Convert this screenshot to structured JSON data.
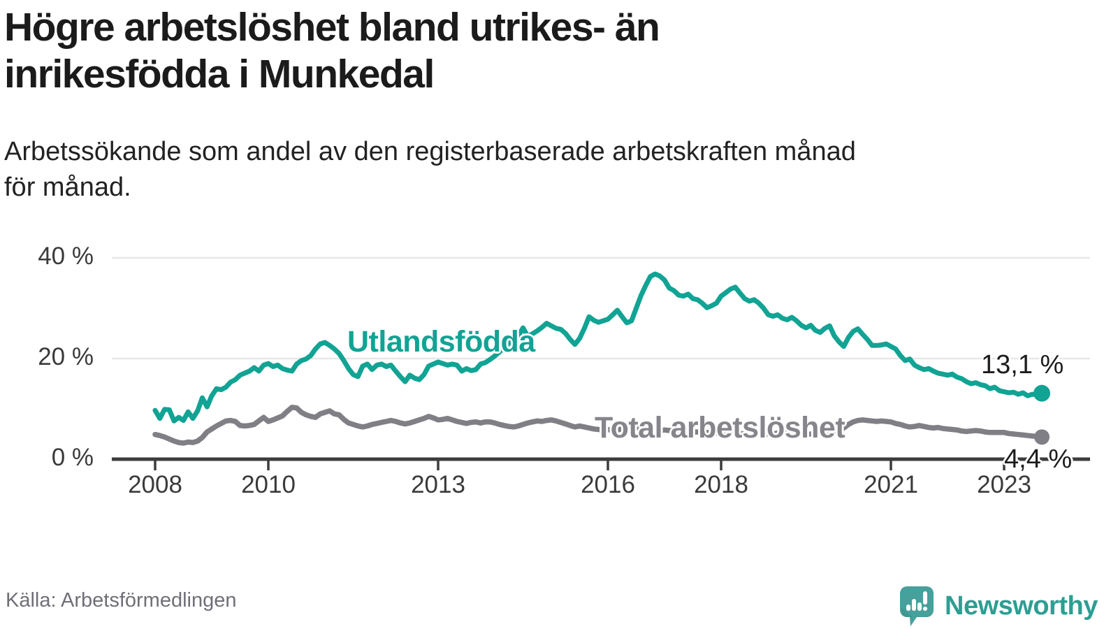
{
  "header": {
    "title_lines": [
      "Högre arbetslöshet bland utrikes- än",
      "inrikesfödda i Munkedal"
    ],
    "subtitle_lines": [
      "Arbetssökande som andel av den registerbaserade arbetskraften månad",
      "för månad."
    ]
  },
  "chart_data": {
    "type": "line",
    "title": "Högre arbetslöshet bland utrikes- än inrikesfödda i Munkedal",
    "subtitle": "Arbetssökande som andel av den registerbaserade arbetskraften månad för månad.",
    "unit": "%",
    "frequency": "monthly",
    "x_start": "2008-01",
    "x_end": "2023-09",
    "ylim": [
      0,
      42
    ],
    "grid": "horizontal",
    "yticks": [
      {
        "value": 40,
        "label": "40 %",
        "gridline": true
      },
      {
        "value": 20,
        "label": "20 %",
        "gridline": true
      },
      {
        "value": 0,
        "label": "0 %",
        "gridline": false
      }
    ],
    "xticks": [
      {
        "label": "2008",
        "month_index": 0
      },
      {
        "label": "2010",
        "month_index": 24
      },
      {
        "label": "2013",
        "month_index": 60
      },
      {
        "label": "2016",
        "month_index": 96
      },
      {
        "label": "2018",
        "month_index": 120
      },
      {
        "label": "2021",
        "month_index": 156
      },
      {
        "label": "2023",
        "month_index": 180
      }
    ],
    "series": [
      {
        "name": "Utlandsfödda",
        "color": "#11a394",
        "end_value": 13.1,
        "end_label": "13,1 %",
        "values": [
          9.7,
          8.1,
          9.9,
          9.8,
          7.6,
          8.3,
          7.7,
          9.4,
          8.1,
          9.6,
          12.2,
          10.4,
          12.6,
          14.0,
          13.8,
          14.3,
          15.3,
          15.8,
          16.7,
          17.1,
          17.5,
          18.2,
          17.5,
          18.7,
          19.0,
          18.4,
          18.7,
          18.0,
          17.7,
          17.5,
          18.9,
          19.6,
          19.9,
          20.6,
          21.9,
          22.9,
          23.2,
          22.6,
          21.9,
          21.0,
          19.6,
          18.0,
          16.8,
          16.4,
          18.5,
          18.9,
          17.8,
          18.7,
          18.9,
          18.4,
          18.7,
          17.5,
          16.4,
          15.4,
          16.7,
          16.1,
          15.8,
          16.8,
          18.5,
          18.9,
          19.3,
          19.0,
          18.7,
          18.9,
          18.7,
          17.5,
          18.0,
          17.6,
          17.8,
          18.9,
          19.2,
          19.8,
          20.5,
          21.3,
          22.2,
          23.0,
          24.0,
          24.5,
          26.1,
          24.4,
          24.9,
          25.5,
          26.2,
          27.0,
          26.5,
          26.0,
          25.8,
          25.0,
          23.8,
          22.8,
          24.0,
          26.0,
          28.3,
          27.6,
          27.2,
          27.5,
          27.8,
          28.7,
          29.6,
          28.3,
          27.1,
          27.5,
          30.0,
          32.5,
          34.5,
          36.3,
          36.8,
          36.4,
          35.6,
          34.0,
          33.5,
          32.6,
          32.4,
          32.8,
          31.9,
          31.7,
          31.0,
          30.1,
          30.5,
          31.0,
          32.4,
          33.1,
          33.8,
          34.2,
          33.0,
          31.9,
          31.4,
          31.7,
          31.0,
          30.0,
          28.7,
          28.4,
          28.7,
          28.0,
          27.7,
          28.2,
          27.5,
          26.6,
          26.1,
          26.6,
          25.6,
          25.2,
          26.0,
          26.5,
          24.5,
          23.3,
          22.4,
          24.2,
          25.4,
          25.9,
          24.8,
          23.8,
          22.6,
          22.6,
          22.7,
          22.9,
          22.4,
          21.9,
          20.6,
          19.6,
          19.9,
          18.7,
          18.2,
          17.8,
          18.0,
          17.5,
          17.1,
          16.9,
          16.7,
          16.9,
          16.3,
          16.0,
          15.4,
          15.0,
          15.2,
          14.8,
          14.6,
          14.0,
          14.3,
          13.6,
          13.4,
          13.2,
          13.3,
          12.9,
          13.2,
          12.6,
          12.9,
          12.8,
          13.1
        ]
      },
      {
        "name": "Total arbetslöshet",
        "color": "#7f7f85",
        "end_value": 4.4,
        "end_label": "4,4 %",
        "values": [
          4.9,
          4.7,
          4.4,
          4.0,
          3.6,
          3.3,
          3.2,
          3.4,
          3.3,
          3.6,
          4.3,
          5.4,
          6.0,
          6.6,
          7.1,
          7.6,
          7.7,
          7.5,
          6.7,
          6.6,
          6.7,
          6.9,
          7.6,
          8.3,
          7.5,
          7.8,
          8.2,
          8.6,
          9.5,
          10.3,
          10.2,
          9.3,
          8.8,
          8.5,
          8.3,
          9.0,
          9.3,
          9.6,
          9.0,
          8.8,
          7.9,
          7.2,
          6.9,
          6.6,
          6.4,
          6.6,
          6.9,
          7.1,
          7.3,
          7.5,
          7.7,
          7.5,
          7.2,
          7.0,
          7.2,
          7.5,
          7.8,
          8.1,
          8.5,
          8.2,
          7.8,
          7.9,
          8.1,
          7.8,
          7.5,
          7.3,
          7.1,
          7.3,
          7.4,
          7.2,
          7.4,
          7.4,
          7.2,
          6.9,
          6.7,
          6.5,
          6.4,
          6.6,
          6.9,
          7.2,
          7.4,
          7.6,
          7.5,
          7.7,
          7.8,
          7.6,
          7.3,
          7.0,
          6.7,
          6.4,
          6.6,
          6.4,
          6.2,
          6.0,
          5.9,
          5.8,
          5.9,
          5.7,
          5.8,
          6.0,
          6.2,
          6.1,
          6.3,
          6.2,
          6.0,
          5.9,
          5.8,
          5.7,
          5.8,
          5.7,
          5.7,
          5.6,
          5.5,
          5.5,
          5.4,
          5.4,
          5.3,
          5.3,
          5.2,
          5.2,
          5.3,
          5.4,
          5.3,
          5.2,
          5.1,
          5.0,
          5.0,
          5.1,
          5.2,
          5.1,
          5.0,
          5.0,
          5.2,
          5.3,
          5.2,
          5.1,
          5.0,
          4.9,
          4.9,
          5.0,
          5.1,
          5.2,
          5.3,
          5.4,
          5.5,
          5.6,
          6.2,
          6.9,
          7.4,
          7.7,
          7.8,
          7.7,
          7.6,
          7.5,
          7.6,
          7.5,
          7.4,
          7.1,
          6.9,
          6.6,
          6.4,
          6.5,
          6.7,
          6.5,
          6.3,
          6.2,
          6.3,
          6.1,
          6.0,
          5.9,
          5.8,
          5.6,
          5.5,
          5.6,
          5.7,
          5.6,
          5.4,
          5.3,
          5.3,
          5.3,
          5.3,
          5.1,
          5.0,
          4.9,
          4.8,
          4.7,
          4.6,
          4.5,
          4.4
        ]
      }
    ]
  },
  "colors": {
    "accent_teal": "#11a394",
    "gray_line": "#7f7f85",
    "axis": "#3c3c3c",
    "gridline": "#e7e7e7",
    "logo_teal": "#46a09c"
  },
  "footer": {
    "source": "Källa: Arbetsförmedlingen",
    "brand": "Newsworthy"
  }
}
